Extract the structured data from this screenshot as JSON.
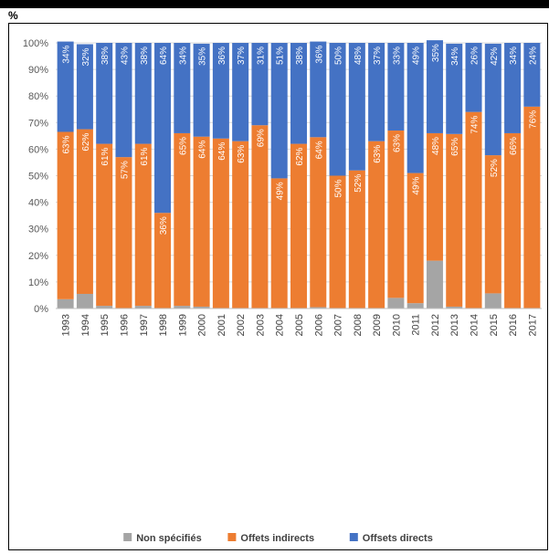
{
  "header": {
    "unit": "%"
  },
  "chart_data": {
    "type": "bar",
    "stacked": true,
    "title": "",
    "xlabel": "",
    "ylabel": "",
    "ylim": [
      0,
      100
    ],
    "y_tick_labels": [
      "0%",
      "10%",
      "20%",
      "30%",
      "40%",
      "50%",
      "60%",
      "70%",
      "80%",
      "90%",
      "100%"
    ],
    "grid": true,
    "legend_position": "bottom",
    "categories": [
      "1993",
      "1994",
      "1995",
      "1996",
      "1997",
      "1998",
      "1999",
      "2000",
      "2001",
      "2002",
      "2003",
      "2004",
      "2005",
      "2006",
      "2007",
      "2008",
      "2009",
      "2010",
      "2011",
      "2012",
      "2013",
      "2014",
      "2015",
      "2016",
      "2017"
    ],
    "series": [
      {
        "name": "Non spécifiés",
        "color": "#a5a5a5",
        "values": [
          3.5,
          5.5,
          1,
          0,
          1,
          0,
          1,
          0.7,
          0,
          0,
          0,
          0,
          0,
          0.5,
          0,
          0,
          0,
          4,
          2,
          18,
          0.7,
          0,
          5.7,
          0,
          0
        ],
        "labels": [
          "",
          "",
          "",
          "",
          "",
          "",
          "",
          "",
          "",
          "",
          "",
          "",
          "",
          "",
          "",
          "",
          "",
          "",
          "",
          "",
          "",
          "",
          "",
          "",
          ""
        ]
      },
      {
        "name": "Offets indirects",
        "color": "#ed7d31",
        "values": [
          63,
          62,
          61,
          57,
          61,
          36,
          65,
          64,
          64,
          63,
          69,
          49,
          62,
          64,
          50,
          52,
          63,
          63,
          49,
          48,
          65,
          74,
          52,
          66,
          76
        ],
        "labels": [
          "63%",
          "62%",
          "61%",
          "57%",
          "61%",
          "36%",
          "65%",
          "64%",
          "64%",
          "63%",
          "69%",
          "49%",
          "62%",
          "64%",
          "50%",
          "52%",
          "63%",
          "63%",
          "49%",
          "48%",
          "65%",
          "74%",
          "52%",
          "66%",
          "76%"
        ]
      },
      {
        "name": "Offsets directs",
        "color": "#4472c4",
        "values": [
          34,
          32,
          38,
          43,
          38,
          64,
          34,
          35,
          36,
          37,
          31,
          51,
          38,
          36,
          50,
          48,
          37,
          33,
          49,
          35,
          34,
          26,
          42,
          34,
          24
        ],
        "labels": [
          "34%",
          "32%",
          "38%",
          "43%",
          "38%",
          "64%",
          "34%",
          "35%",
          "36%",
          "37%",
          "31%",
          "51%",
          "38%",
          "36%",
          "50%",
          "48%",
          "37%",
          "33%",
          "49%",
          "35%",
          "34%",
          "26%",
          "42%",
          "34%",
          "24%"
        ]
      }
    ]
  }
}
